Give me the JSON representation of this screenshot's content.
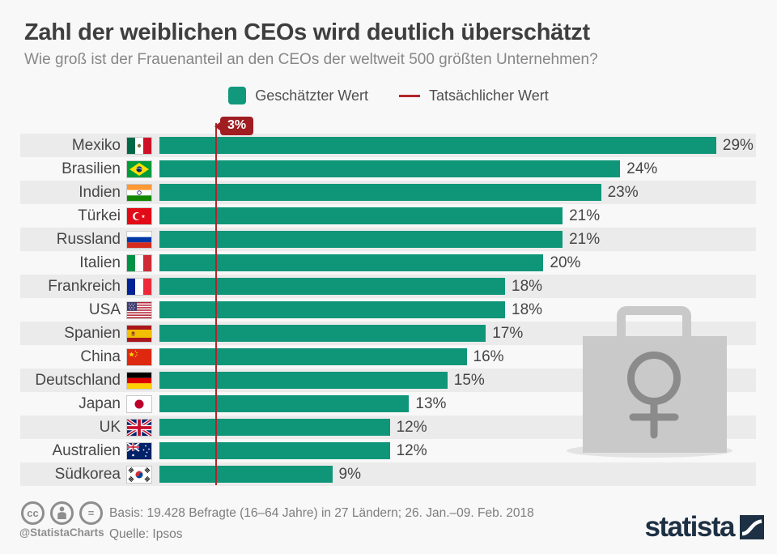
{
  "header": {
    "title": "Zahl der weiblichen CEOs wird deutlich überschätzt",
    "subtitle": "Wie groß ist der Frauenanteil an den CEOs der weltweit 500 größten Unternehmen?"
  },
  "legend": {
    "estimated": {
      "label": "Geschätzter Wert",
      "color": "#12997c",
      "swatch": "square"
    },
    "actual": {
      "label": "Tatsächlicher Wert",
      "color": "#b2252a",
      "swatch": "line"
    }
  },
  "chart_data": {
    "type": "bar",
    "orientation": "horizontal",
    "unit": "%",
    "xlim": [
      0,
      31
    ],
    "grid": false,
    "bar_color": "#0f9678",
    "actual_marker": {
      "value": 3,
      "label": "3%",
      "color": "#b2252a",
      "legend": "Tatsächlicher Wert"
    },
    "categories": [
      "Mexiko",
      "Brasilien",
      "Indien",
      "Türkei",
      "Russland",
      "Italien",
      "Frankreich",
      "USA",
      "Spanien",
      "China",
      "Deutschland",
      "Japan",
      "UK",
      "Australien",
      "Südkorea"
    ],
    "values": [
      29,
      24,
      23,
      21,
      21,
      20,
      18,
      18,
      17,
      16,
      15,
      13,
      12,
      12,
      9
    ],
    "rows": [
      {
        "label": "Mexiko",
        "flag": "mexico",
        "value": 29,
        "value_label": "29%"
      },
      {
        "label": "Brasilien",
        "flag": "brazil",
        "value": 24,
        "value_label": "24%"
      },
      {
        "label": "Indien",
        "flag": "india",
        "value": 23,
        "value_label": "23%"
      },
      {
        "label": "Türkei",
        "flag": "turkey",
        "value": 21,
        "value_label": "21%"
      },
      {
        "label": "Russland",
        "flag": "russia",
        "value": 21,
        "value_label": "21%"
      },
      {
        "label": "Italien",
        "flag": "italy",
        "value": 20,
        "value_label": "20%"
      },
      {
        "label": "Frankreich",
        "flag": "france",
        "value": 18,
        "value_label": "18%"
      },
      {
        "label": "USA",
        "flag": "usa",
        "value": 18,
        "value_label": "18%"
      },
      {
        "label": "Spanien",
        "flag": "spain",
        "value": 17,
        "value_label": "17%"
      },
      {
        "label": "China",
        "flag": "china",
        "value": 16,
        "value_label": "16%"
      },
      {
        "label": "Deutschland",
        "flag": "germany",
        "value": 15,
        "value_label": "15%"
      },
      {
        "label": "Japan",
        "flag": "japan",
        "value": 13,
        "value_label": "13%"
      },
      {
        "label": "UK",
        "flag": "uk",
        "value": 12,
        "value_label": "12%"
      },
      {
        "label": "Australien",
        "flag": "australia",
        "value": 12,
        "value_label": "12%"
      },
      {
        "label": "Südkorea",
        "flag": "south-korea",
        "value": 9,
        "value_label": "9%"
      }
    ]
  },
  "watermark": {
    "icon": "shopping-bag-female-symbol-watermark"
  },
  "footer": {
    "basis": "Basis: 19.428 Befragte (16–64 Jahre) in 27 Ländern; 26. Jan.–09. Feb. 2018",
    "source": "Quelle: Ipsos",
    "credit": "@StatistaCharts",
    "cc_label": "cc",
    "equals_label": "=",
    "brand": "statista"
  },
  "colors": {
    "bar": "#0f9678",
    "stripe": "#ebebeb",
    "background": "#f8f8f8",
    "red_line": "#b2252a",
    "badge": "#a01d22",
    "title_text": "#3e3e3e",
    "subtitle_text": "#878787",
    "label_text": "#474747",
    "footer_text": "#7d7d7d",
    "brand_navy": "#1e3044"
  }
}
